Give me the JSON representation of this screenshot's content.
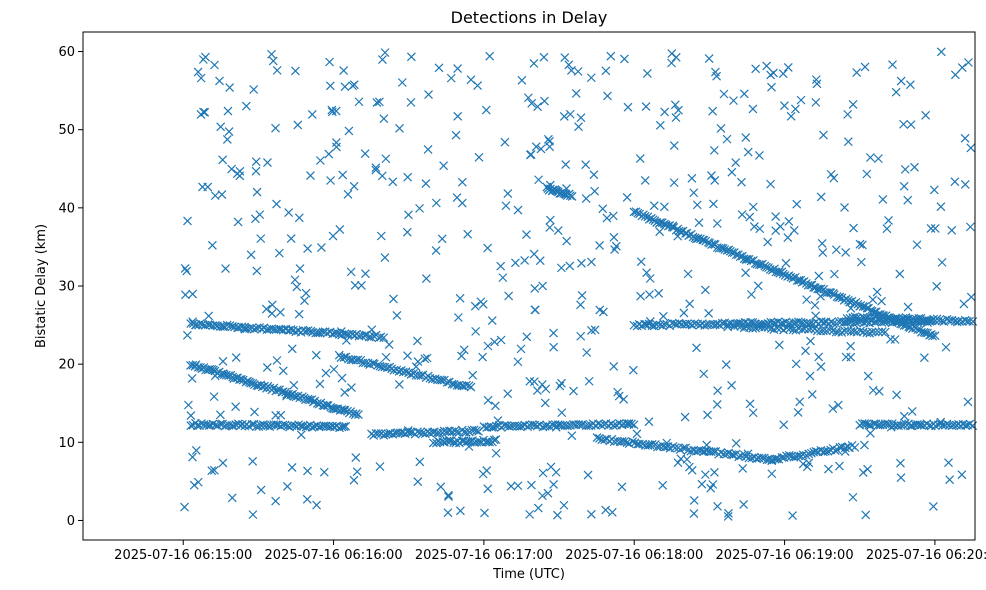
{
  "chart_data": {
    "type": "scatter",
    "title": "Detections in Delay",
    "xlabel": "Time (UTC)",
    "ylabel": "Bistatic Delay (km)",
    "x_tick_labels": [
      "2025-07-16 06:15:00",
      "2025-07-16 06:16:00",
      "2025-07-16 06:17:00",
      "2025-07-16 06:18:00",
      "2025-07-16 06:19:00",
      "2025-07-16 06:20:00"
    ],
    "x_tick_values_s": [
      0,
      60,
      120,
      180,
      240,
      300
    ],
    "y_ticks": [
      0,
      10,
      20,
      30,
      40,
      50,
      60
    ],
    "xlim_s": [
      -40,
      316
    ],
    "ylim": [
      -2.5,
      62.5
    ],
    "grid": false,
    "legend": "none",
    "marker": "x",
    "color": "#1f77b4",
    "series": [
      {
        "name": "",
        "tracks": [
          {
            "from": [
              3,
              25.2
            ],
            "to": [
              80,
              23.5
            ],
            "n": 80
          },
          {
            "from": [
              3,
              20.0
            ],
            "to": [
              70,
              13.5
            ],
            "n": 90
          },
          {
            "from": [
              3,
              12.3
            ],
            "to": [
              65,
              12.0
            ],
            "n": 70
          },
          {
            "from": [
              63,
              21.0
            ],
            "to": [
              115,
              17.0
            ],
            "n": 55
          },
          {
            "from": [
              75,
              11.0
            ],
            "to": [
              118,
              11.5
            ],
            "n": 45
          },
          {
            "from": [
              100,
              10.0
            ],
            "to": [
              125,
              10.2
            ],
            "n": 30
          },
          {
            "from": [
              120,
              12.0
            ],
            "to": [
              180,
              12.3
            ],
            "n": 60
          },
          {
            "from": [
              145,
              42.5
            ],
            "to": [
              155,
              41.5
            ],
            "n": 20
          },
          {
            "from": [
              180,
              39.5
            ],
            "to": [
              300,
              23.5
            ],
            "n": 160
          },
          {
            "from": [
              165,
              10.5
            ],
            "to": [
              235,
              7.8
            ],
            "n": 70
          },
          {
            "from": [
              220,
              24.8
            ],
            "to": [
              280,
              24.0
            ],
            "n": 50
          },
          {
            "from": [
              265,
              26.0
            ],
            "to": [
              315,
              25.5
            ],
            "n": 50
          },
          {
            "from": [
              270,
              12.3
            ],
            "to": [
              315,
              12.2
            ],
            "n": 50
          },
          {
            "from": [
              235,
              7.8
            ],
            "to": [
              268,
              9.5
            ],
            "n": 35
          },
          {
            "from": [
              180,
              25.0
            ],
            "to": [
              300,
              25.5
            ],
            "n": 120
          }
        ],
        "scatter_count": 600,
        "scatter_x_range": [
          0,
          315
        ],
        "scatter_y_range": [
          0.5,
          60
        ]
      }
    ]
  }
}
